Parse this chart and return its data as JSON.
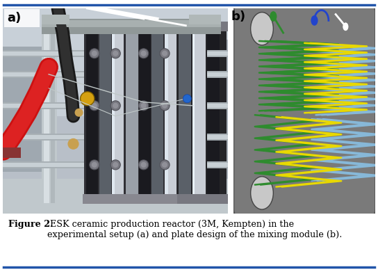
{
  "figsize": [
    5.44,
    3.91
  ],
  "dpi": 100,
  "bg_color": "#ffffff",
  "border_color": "#2255aa",
  "caption_bold": "Figure 2.",
  "caption_normal": " ESK ceramic production reactor (3M, Kempten) in the\nexperimental setup (a) and plate design of the mixing module (b).",
  "caption_fontsize": 9.2,
  "label_a": "a)",
  "label_b": "b)",
  "label_fontsize": 13,
  "plate_bg": "#7a7a7a",
  "green_color": "#2e8b2e",
  "yellow_color": "#e8d800",
  "lightblue_color": "#87b8d8",
  "hole_color": "#c8c8c8",
  "photo_bg_top": "#c8cdd0",
  "photo_bg_bot": "#b8bdc0"
}
